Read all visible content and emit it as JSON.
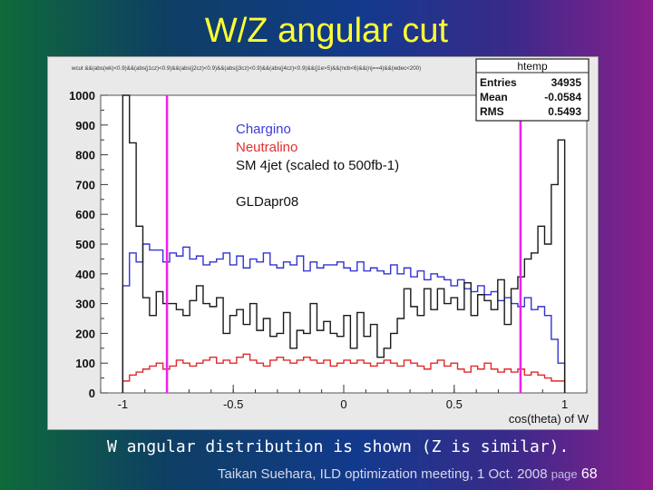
{
  "slide": {
    "title": "W/Z angular cut",
    "caption": "W angular distribution is shown (Z is similar).",
    "footer": "Taikan Suehara, ILD optimization meeting, 1 Oct. 2008",
    "page_label": "page",
    "page_number": "68"
  },
  "chart_data": {
    "type": "histogram",
    "cut_string": "wcut &&(abs(wk)<0.9)&&(abs(j1cz)<0.9)&&(abs(j2cz)<0.9)&&(abs(j3cz)<0.9)&&(abs(j4cz)<0.9)&&(j1e>5)&&(ncb<6)&&(nj==4)&&(wdec<200)",
    "stats_box": {
      "title": "htemp",
      "entries_label": "Entries",
      "entries": "34935",
      "mean_label": "Mean",
      "mean": "-0.0584",
      "rms_label": "RMS",
      "rms": "0.5493"
    },
    "xlabel": "cos(theta) of W",
    "ylabel": "",
    "xlim": [
      -1.1,
      1.1
    ],
    "ylim": [
      0,
      1000
    ],
    "xticks": [
      -1,
      -0.5,
      0,
      0.5,
      1
    ],
    "xtick_labels": [
      "-1",
      "-0.5",
      "0",
      "0.5",
      "1"
    ],
    "yticks": [
      0,
      100,
      200,
      300,
      400,
      500,
      600,
      700,
      800,
      900,
      1000
    ],
    "ytick_labels": [
      "0",
      "100",
      "200",
      "300",
      "400",
      "500",
      "600",
      "700",
      "800",
      "900",
      "1000"
    ],
    "grid": false,
    "cut_lines": [
      -0.8,
      0.8
    ],
    "legend": {
      "placement": "top-left",
      "entries": [
        {
          "label": "Chargino",
          "color": "#3b3bd8"
        },
        {
          "label": "Neutralino",
          "color": "#e03030"
        },
        {
          "label": "SM 4jet (scaled to 500fb-1)",
          "color": "#111111"
        }
      ],
      "note": "GLDapr08"
    },
    "bin_range": [
      -1,
      1
    ],
    "series": [
      {
        "name": "SM 4jet (scaled to 500fb-1)",
        "color": "#1a1a1a",
        "values": [
          1000,
          840,
          560,
          320,
          260,
          340,
          300,
          300,
          280,
          260,
          310,
          360,
          300,
          290,
          320,
          200,
          260,
          280,
          230,
          300,
          210,
          250,
          190,
          200,
          270,
          150,
          210,
          200,
          300,
          210,
          240,
          200,
          190,
          260,
          150,
          270,
          190,
          230,
          120,
          150,
          200,
          250,
          350,
          290,
          260,
          350,
          280,
          350,
          300,
          320,
          280,
          370,
          260,
          330,
          310,
          280,
          380,
          230,
          350,
          390,
          450,
          470,
          560,
          500,
          700,
          850
        ]
      },
      {
        "name": "Chargino",
        "color": "#3434d0",
        "values": [
          360,
          470,
          440,
          500,
          480,
          480,
          440,
          470,
          460,
          490,
          450,
          460,
          430,
          440,
          450,
          470,
          430,
          460,
          420,
          450,
          440,
          470,
          430,
          420,
          440,
          430,
          460,
          410,
          440,
          420,
          430,
          430,
          440,
          420,
          410,
          440,
          410,
          420,
          410,
          400,
          430,
          400,
          420,
          390,
          410,
          380,
          400,
          390,
          380,
          360,
          380,
          350,
          340,
          360,
          330,
          340,
          310,
          320,
          300,
          290,
          320,
          280,
          290,
          260,
          180,
          100
        ]
      },
      {
        "name": "Neutralino",
        "color": "#e02a2a",
        "values": [
          40,
          60,
          70,
          80,
          90,
          100,
          80,
          90,
          110,
          100,
          90,
          100,
          110,
          120,
          100,
          110,
          100,
          120,
          130,
          110,
          100,
          90,
          110,
          120,
          110,
          100,
          110,
          120,
          110,
          100,
          110,
          90,
          100,
          110,
          100,
          110,
          100,
          90,
          100,
          110,
          100,
          90,
          110,
          100,
          90,
          80,
          100,
          110,
          90,
          100,
          80,
          70,
          90,
          80,
          100,
          80,
          70,
          80,
          70,
          80,
          60,
          70,
          60,
          50,
          40,
          40
        ]
      }
    ]
  }
}
